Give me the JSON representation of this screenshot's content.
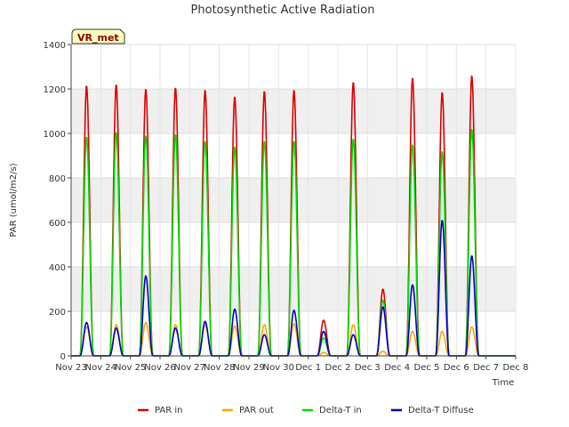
{
  "chart_data": {
    "type": "line",
    "title": "Photosynthetic Active Radiation",
    "xlabel": "Time",
    "ylabel": "PAR (umol/m2/s)",
    "ylim": [
      0,
      1400
    ],
    "yticks": [
      0,
      200,
      400,
      600,
      800,
      1000,
      1200,
      1400
    ],
    "xlim": [
      0,
      15
    ],
    "xtick_labels": [
      "Nov 23",
      "Nov 24",
      "Nov 25",
      "Nov 26",
      "Nov 27",
      "Nov 28",
      "Nov 29",
      "Nov 30",
      "Dec 1",
      "Dec 2",
      "Dec 3",
      "Dec 4",
      "Dec 5",
      "Dec 6",
      "Dec 7",
      "Dec 8"
    ],
    "badge": "VR_met",
    "legend_position": "bottom",
    "series": [
      {
        "name": "PAR in",
        "color": "#dd0000",
        "daily_peaks": [
          1215,
          1220,
          1200,
          1205,
          1195,
          1165,
          1190,
          1195,
          160,
          1230,
          300,
          1250,
          1185,
          1260,
          0
        ]
      },
      {
        "name": "PAR out",
        "color": "#ffa500",
        "daily_peaks": [
          130,
          140,
          150,
          140,
          140,
          135,
          140,
          145,
          15,
          140,
          20,
          110,
          110,
          130,
          0
        ]
      },
      {
        "name": "Delta-T in",
        "color": "#00dd00",
        "daily_peaks": [
          985,
          1005,
          990,
          995,
          965,
          940,
          965,
          965,
          80,
          975,
          250,
          950,
          920,
          1020,
          0
        ]
      },
      {
        "name": "Delta-T Diffuse",
        "color": "#0000cc",
        "daily_peaks": [
          150,
          125,
          360,
          125,
          155,
          210,
          95,
          205,
          110,
          95,
          220,
          320,
          610,
          450,
          0
        ]
      }
    ]
  }
}
